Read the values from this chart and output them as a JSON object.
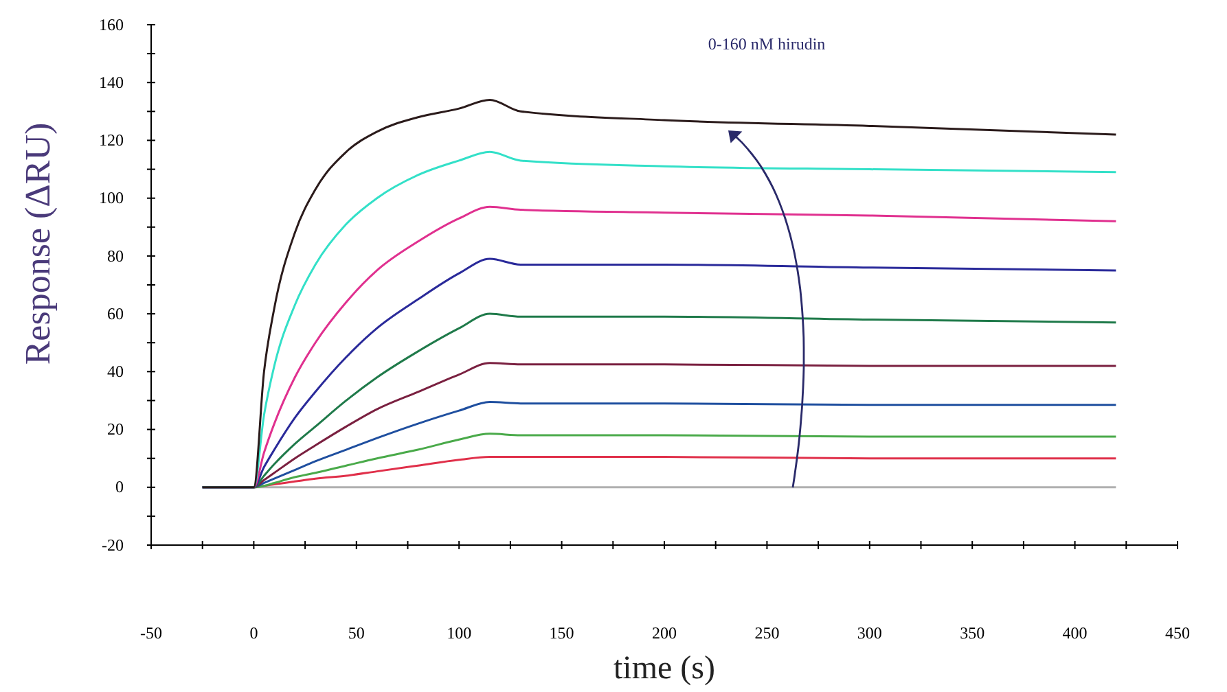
{
  "chart_data": {
    "type": "line",
    "xlabel": "time (s)",
    "ylabel": "Response (ΔRU)",
    "annotations": [
      "0-160 nM hirudin"
    ],
    "xlim": [
      -50,
      450
    ],
    "ylim": [
      -20,
      160
    ],
    "xticks": [
      -50,
      {
        "value": -25,
        "label": null
      },
      0,
      {
        "value": 25,
        "label": null
      },
      50,
      {
        "value": 75,
        "label": null
      },
      100,
      {
        "value": 125,
        "label": null
      },
      150,
      {
        "value": 175,
        "label": null
      },
      200,
      {
        "value": 225,
        "label": null
      },
      250,
      {
        "value": 275,
        "label": null
      },
      300,
      {
        "value": 325,
        "label": null
      },
      350,
      {
        "value": 375,
        "label": null
      },
      400,
      {
        "value": 425,
        "label": null
      },
      450
    ],
    "yticks": [
      -20,
      {
        "value": -10,
        "label": null
      },
      0,
      {
        "value": 10,
        "label": null
      },
      20,
      {
        "value": 30,
        "label": null
      },
      40,
      {
        "value": 50,
        "label": null
      },
      60,
      {
        "value": 70,
        "label": null
      },
      80,
      {
        "value": 90,
        "label": null
      },
      100,
      {
        "value": 110,
        "label": null
      },
      120,
      {
        "value": 130,
        "label": null
      },
      140,
      {
        "value": 150,
        "label": null
      },
      160
    ],
    "grid": false,
    "marker": "none",
    "line_style": "solid",
    "x": [
      -25,
      0,
      5,
      10,
      20,
      30,
      45,
      60,
      80,
      100,
      115,
      130,
      200,
      300,
      420
    ],
    "series": [
      {
        "color": "#b0b0b0",
        "values": [
          0,
          0,
          0,
          0,
          0,
          0,
          0,
          0,
          0,
          0,
          0,
          0,
          0,
          0,
          0
        ]
      },
      {
        "color": "#e0304a",
        "values": [
          0,
          0,
          0.5,
          1,
          2,
          3,
          4,
          5.5,
          7.5,
          9.5,
          10.5,
          10.5,
          10.5,
          10,
          10
        ]
      },
      {
        "color": "#4aaa4a",
        "values": [
          0,
          0,
          0.5,
          1.5,
          3.5,
          5,
          7.5,
          10,
          13,
          16.5,
          18.5,
          18,
          18,
          17.5,
          17.5
        ]
      },
      {
        "color": "#1f4f9f",
        "values": [
          0,
          0,
          1.5,
          3,
          6,
          9,
          13,
          17,
          22,
          26.5,
          29.5,
          29,
          29,
          28.5,
          28.5
        ]
      },
      {
        "color": "#7a2040",
        "values": [
          0,
          0,
          2.5,
          5,
          10,
          14.5,
          21,
          27,
          33,
          39,
          43,
          42.5,
          42.5,
          42,
          42
        ]
      },
      {
        "color": "#1f7a4a",
        "values": [
          0,
          0,
          4,
          8,
          15,
          21,
          30,
          38,
          47,
          55,
          60,
          59,
          59,
          58,
          57
        ]
      },
      {
        "color": "#2a2a9a",
        "values": [
          0,
          0,
          7,
          13,
          24,
          33,
          45,
          55,
          65,
          74,
          79,
          77,
          77,
          76,
          75
        ]
      },
      {
        "color": "#e0308f",
        "values": [
          0,
          0,
          12,
          22,
          38,
          50,
          64,
          75,
          85,
          93,
          97,
          96,
          95,
          94,
          92
        ]
      },
      {
        "color": "#33e0c8",
        "values": [
          0,
          0,
          25,
          42,
          63,
          77,
          91,
          100,
          108,
          113,
          116,
          113,
          111,
          110,
          109
        ]
      },
      {
        "color": "#2b1b1b",
        "values": [
          0,
          0,
          40,
          62,
          88,
          103,
          116,
          123,
          128,
          131,
          134,
          130,
          127,
          125,
          122
        ]
      }
    ]
  }
}
